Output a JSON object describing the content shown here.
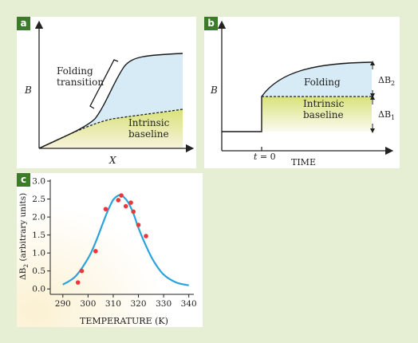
{
  "panel_a": {
    "badge": "a",
    "y_label": "B",
    "x_label": "X",
    "annotation_1": "Folding",
    "annotation_2": "transition",
    "region_1": "Intrinsic",
    "region_2": "baseline",
    "colors": {
      "upper_fill": "#d6ebf6",
      "lower_fill": "#d8e27a",
      "curve": "#1a1a1a"
    }
  },
  "panel_b": {
    "badge": "b",
    "y_label": "B",
    "x_label": "TIME",
    "t0_label_t": "t",
    "t0_label_rest": " = 0",
    "upper_region": "Folding",
    "lower_region_1": "Intrinsic",
    "lower_region_2": "baseline",
    "delta_top_main": "ΔB",
    "delta_top_sub": "2",
    "delta_bottom_main": "ΔB",
    "delta_bottom_sub": "1"
  },
  "panel_c": {
    "badge": "c",
    "chart_data": {
      "type": "scatter",
      "xlabel": "TEMPERATURE (K)",
      "ylabel_main": "ΔB",
      "ylabel_sub": "2",
      "ylabel_rest": " (arbitrary units)",
      "xlim": [
        285,
        342
      ],
      "ylim": [
        -0.15,
        3.0
      ],
      "x_ticks": [
        "290",
        "300",
        "310",
        "320",
        "330",
        "340"
      ],
      "y_ticks": [
        "0.0",
        "0.5",
        "1.0",
        "1.5",
        "2.0",
        "2.5",
        "3.0"
      ],
      "fit_curve": {
        "x": [
          290,
          295,
          300,
          303,
          306,
          308,
          310,
          312,
          313,
          314,
          316,
          318,
          320,
          323,
          326,
          330,
          335,
          340
        ],
        "y": [
          0.12,
          0.35,
          0.85,
          1.3,
          1.85,
          2.2,
          2.48,
          2.6,
          2.6,
          2.57,
          2.4,
          2.1,
          1.7,
          1.2,
          0.78,
          0.4,
          0.18,
          0.1
        ]
      },
      "points": {
        "x": [
          296,
          297.5,
          303,
          307,
          312,
          313.2,
          315,
          317,
          318,
          320,
          323
        ],
        "y": [
          0.18,
          0.5,
          1.05,
          2.22,
          2.47,
          2.6,
          2.3,
          2.4,
          2.15,
          1.78,
          1.47
        ]
      },
      "colors": {
        "curve": "#2aa3dc",
        "points": "#e8383c"
      }
    }
  }
}
